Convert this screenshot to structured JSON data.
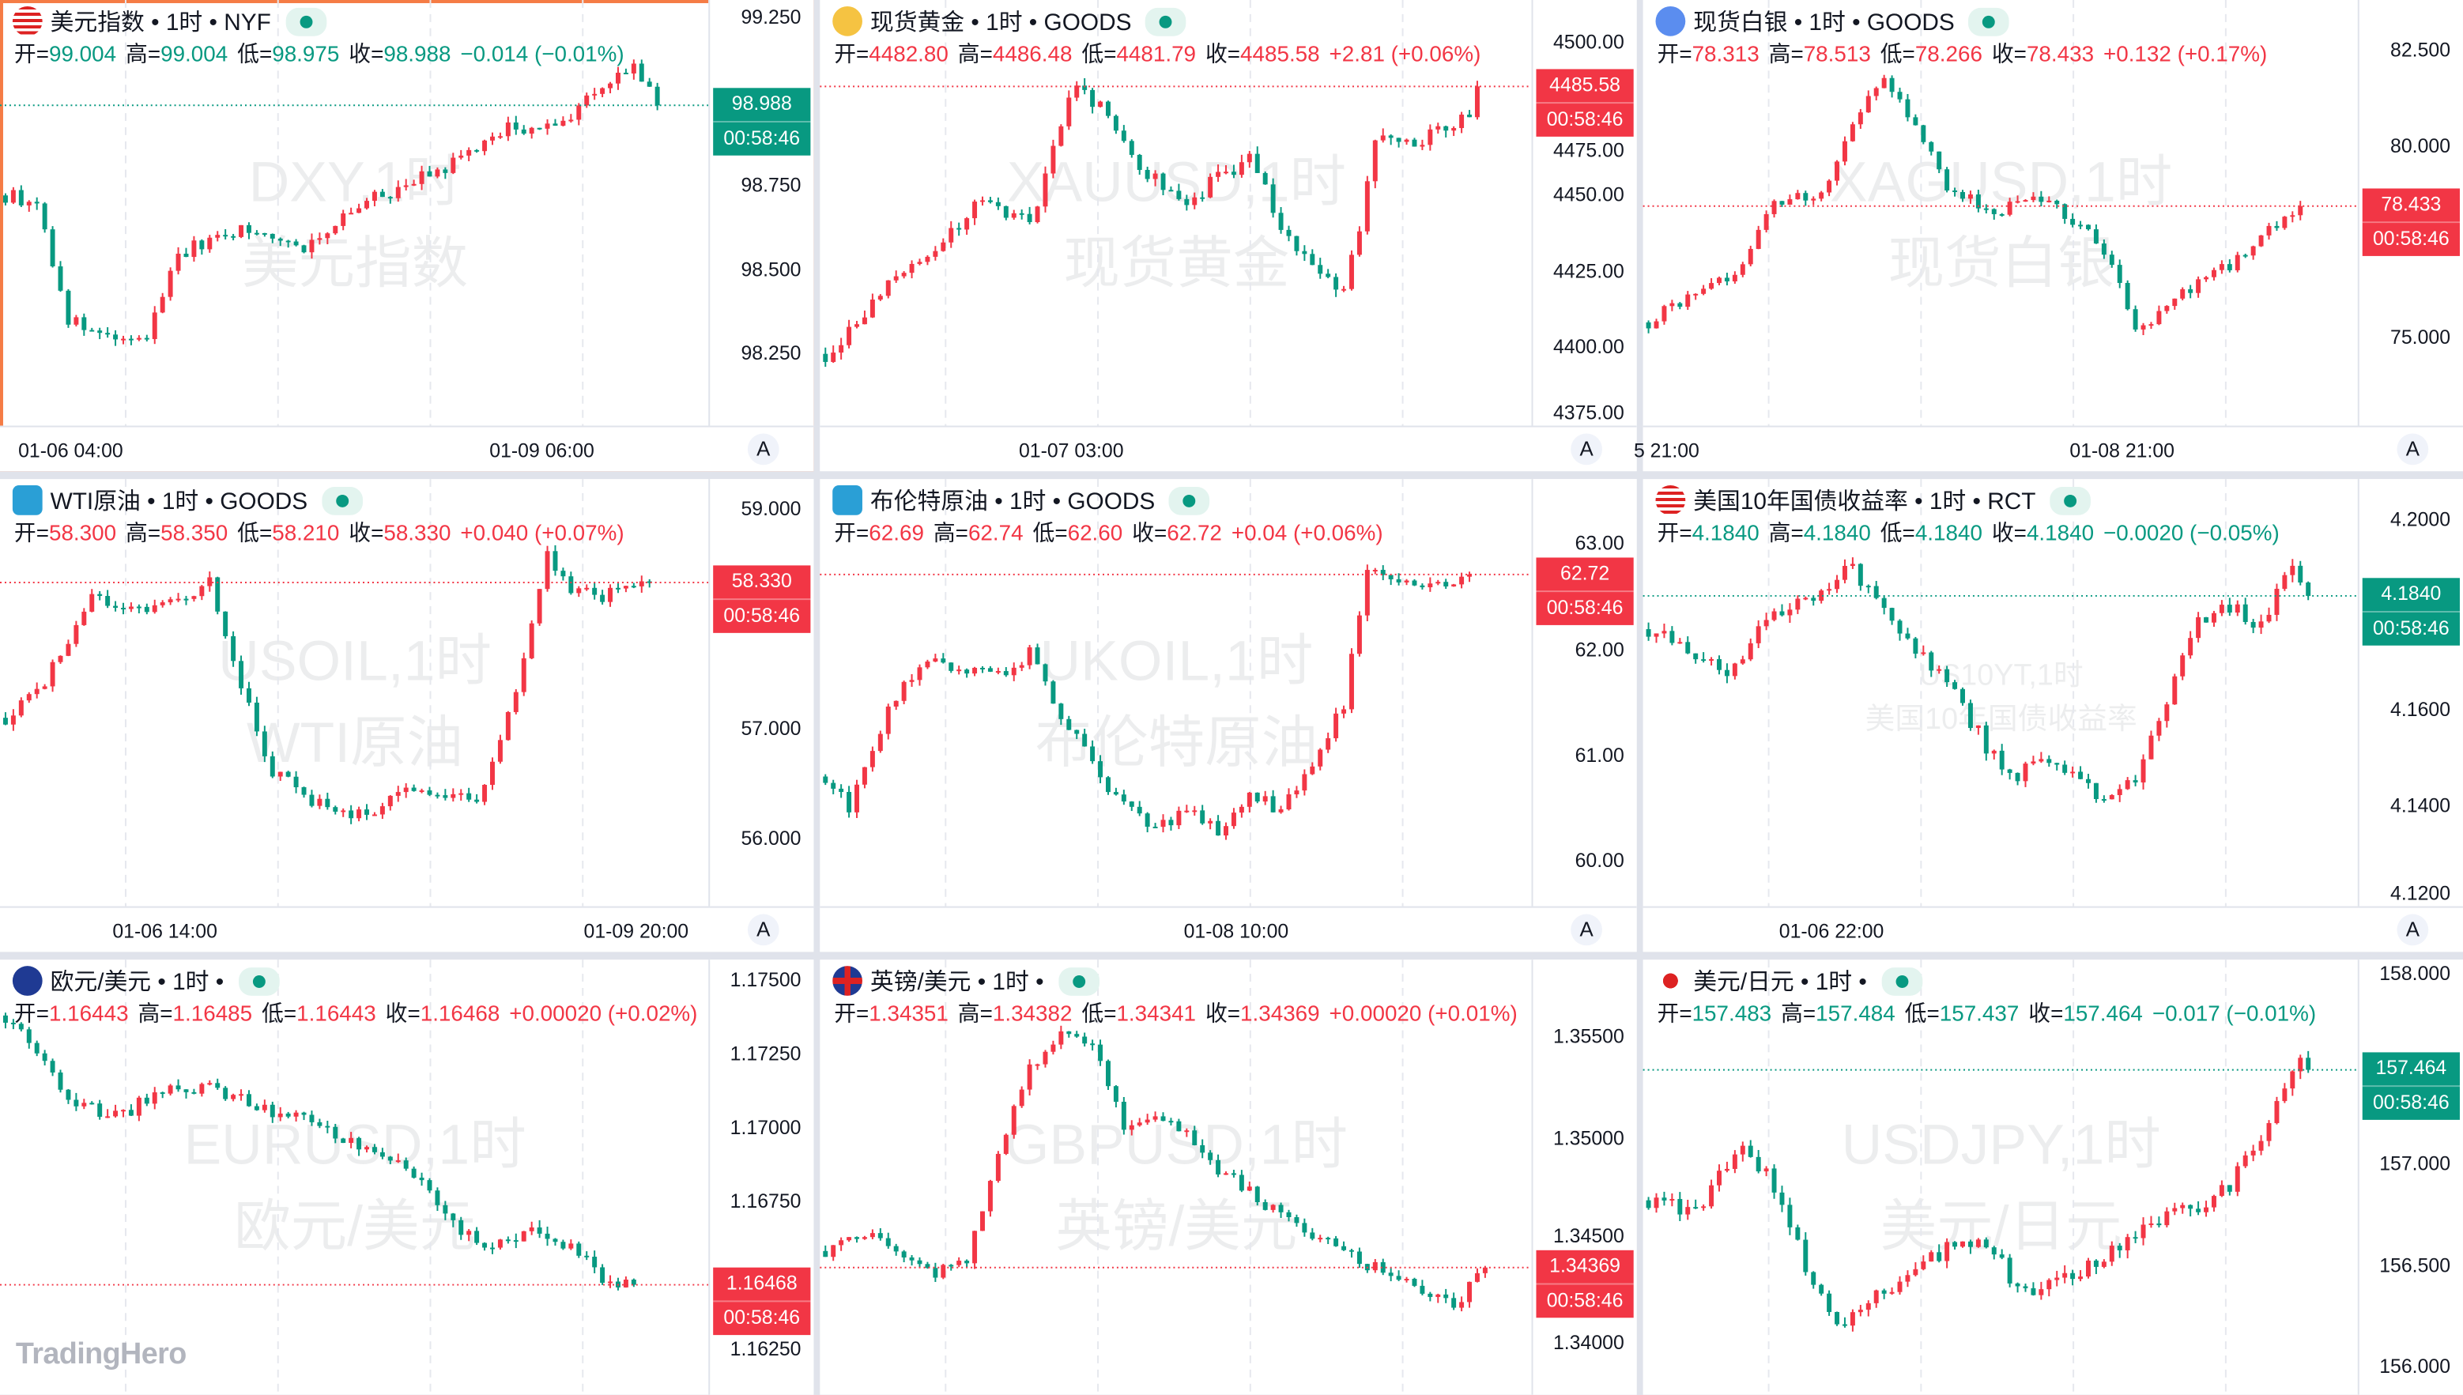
{
  "colors": {
    "up": "#f23645",
    "down": "#089981",
    "selected_border": "#f57c45"
  },
  "ohlc_labels": {
    "open": "开=",
    "high": "高=",
    "low": "低=",
    "close": "收="
  },
  "countdown": "00:58:46",
  "auto_scale_label": "A",
  "logo": "TradingHero",
  "panels": [
    {
      "title": "美元指数 • 1时 • NYF",
      "icon": "us-flag-icon",
      "selected": true,
      "open": "99.004",
      "high": "99.004",
      "low": "98.975",
      "close": "98.988",
      "change": "−0.014 (−0.01%)",
      "direction": "down",
      "price": 98.988,
      "price_label": "98.988",
      "y_ticks": [
        {
          "label": "99.250",
          "value": 99.25
        },
        {
          "label": "98.750",
          "value": 98.75
        },
        {
          "label": "98.500",
          "value": 98.5
        },
        {
          "label": "98.250",
          "value": 98.25
        }
      ],
      "x_labels": [
        {
          "label": "01-06 04:00",
          "bar": 9
        },
        {
          "label": "01-09 06:00",
          "bar": 69
        }
      ],
      "watermark": [
        "DXY,1时",
        "美元指数"
      ],
      "path": [
        [
          0,
          98.72
        ],
        [
          4,
          98.7
        ],
        [
          8,
          98.35
        ],
        [
          14,
          98.28
        ],
        [
          18,
          98.3
        ],
        [
          22,
          98.55
        ],
        [
          30,
          98.62
        ],
        [
          38,
          98.57
        ],
        [
          46,
          98.7
        ],
        [
          56,
          98.8
        ],
        [
          64,
          98.92
        ],
        [
          70,
          98.92
        ],
        [
          76,
          99.05
        ],
        [
          80,
          99.1
        ],
        [
          83,
          98.988
        ]
      ]
    },
    {
      "title": "现货黄金 • 1时 • GOODS",
      "icon": "gold-icon",
      "selected": false,
      "open": "4482.80",
      "high": "4486.48",
      "low": "4481.79",
      "close": "4485.58",
      "change": "+2.81 (+0.06%)",
      "direction": "up",
      "price": 4485.58,
      "price_label": "4485.58",
      "y_ticks": [
        {
          "label": "4500.00",
          "value": 4500
        },
        {
          "label": "4475.00",
          "value": 4475
        },
        {
          "label": "4450.00",
          "value": 4450
        },
        {
          "label": "4425.00",
          "value": 4425
        },
        {
          "label": "4400.00",
          "value": 4400
        },
        {
          "label": "4375.00",
          "value": 4375
        }
      ],
      "x_labels": [
        {
          "label": "01-07 03:00",
          "bar": 32
        }
      ],
      "watermark": [
        "XAUUSD,1时",
        "现货黄金"
      ],
      "path": [
        [
          0,
          4398
        ],
        [
          8,
          4420
        ],
        [
          14,
          4430
        ],
        [
          20,
          4450
        ],
        [
          26,
          4440
        ],
        [
          32,
          4488
        ],
        [
          36,
          4475
        ],
        [
          40,
          4460
        ],
        [
          46,
          4448
        ],
        [
          54,
          4462
        ],
        [
          60,
          4430
        ],
        [
          66,
          4420
        ],
        [
          68,
          4440
        ],
        [
          70,
          4470
        ],
        [
          76,
          4468
        ],
        [
          82,
          4478
        ],
        [
          83,
          4485.58
        ]
      ]
    },
    {
      "title": "现货白银 • 1时 • GOODS",
      "icon": "silver-icon",
      "selected": false,
      "open": "78.313",
      "high": "78.513",
      "low": "78.266",
      "close": "78.433",
      "change": "+0.132 (+0.17%)",
      "direction": "up",
      "price": 78.433,
      "price_label": "78.433",
      "y_ticks": [
        {
          "label": "82.500",
          "value": 82.5
        },
        {
          "label": "80.000",
          "value": 80
        },
        {
          "label": "75.000",
          "value": 75
        }
      ],
      "x_labels": [
        {
          "label": "5 21:00",
          "bar": 3
        },
        {
          "label": "01-08 21:00",
          "bar": 61
        }
      ],
      "watermark": [
        "XAGUSD,1时",
        "现货白银"
      ],
      "path": [
        [
          0,
          75.4
        ],
        [
          6,
          76.2
        ],
        [
          12,
          76.8
        ],
        [
          16,
          78.6
        ],
        [
          22,
          78.8
        ],
        [
          26,
          80.5
        ],
        [
          30,
          81.8
        ],
        [
          34,
          80.5
        ],
        [
          38,
          79.0
        ],
        [
          44,
          78.3
        ],
        [
          50,
          78.6
        ],
        [
          56,
          77.8
        ],
        [
          60,
          76.5
        ],
        [
          62,
          75.2
        ],
        [
          66,
          75.8
        ],
        [
          70,
          76.5
        ],
        [
          74,
          76.9
        ],
        [
          78,
          77.6
        ],
        [
          82,
          78.3
        ],
        [
          83,
          78.433
        ]
      ]
    },
    {
      "title": "WTI原油 • 1时 • GOODS",
      "icon": "oil-icon",
      "selected": false,
      "open": "58.300",
      "high": "58.350",
      "low": "58.210",
      "close": "58.330",
      "change": "+0.040 (+0.07%)",
      "direction": "up",
      "price": 58.33,
      "price_label": "58.330",
      "y_ticks": [
        {
          "label": "59.000",
          "value": 59
        },
        {
          "label": "57.000",
          "value": 57
        },
        {
          "label": "56.000",
          "value": 56
        }
      ],
      "x_labels": [
        {
          "label": "01-06 14:00",
          "bar": 21
        },
        {
          "label": "01-09 20:00",
          "bar": 81
        }
      ],
      "watermark": [
        "USOIL,1时",
        "WTI原油"
      ],
      "path": [
        [
          0,
          57.1
        ],
        [
          4,
          57.3
        ],
        [
          8,
          57.8
        ],
        [
          11,
          58.2
        ],
        [
          14,
          58.05
        ],
        [
          20,
          58.1
        ],
        [
          26,
          58.35
        ],
        [
          30,
          57.4
        ],
        [
          34,
          56.6
        ],
        [
          40,
          56.3
        ],
        [
          46,
          56.2
        ],
        [
          50,
          56.4
        ],
        [
          56,
          56.4
        ],
        [
          60,
          56.3
        ],
        [
          63,
          56.9
        ],
        [
          66,
          57.6
        ],
        [
          69,
          58.6
        ],
        [
          72,
          58.3
        ],
        [
          76,
          58.2
        ],
        [
          80,
          58.3
        ],
        [
          82,
          58.33
        ]
      ]
    },
    {
      "title": "布伦特原油 • 1时 • GOODS",
      "icon": "oil-icon",
      "selected": false,
      "open": "62.69",
      "high": "62.74",
      "low": "62.60",
      "close": "62.72",
      "change": "+0.04 (+0.06%)",
      "direction": "up",
      "price": 62.72,
      "price_label": "62.72",
      "y_ticks": [
        {
          "label": "63.00",
          "value": 63
        },
        {
          "label": "62.00",
          "value": 62
        },
        {
          "label": "61.00",
          "value": 61
        },
        {
          "label": "60.00",
          "value": 60
        }
      ],
      "x_labels": [
        {
          "label": "01-08 10:00",
          "bar": 53
        }
      ],
      "watermark": [
        "UKOIL,1时",
        "布伦特原油"
      ],
      "path": [
        [
          0,
          60.8
        ],
        [
          3,
          60.5
        ],
        [
          8,
          61.4
        ],
        [
          12,
          61.9
        ],
        [
          18,
          61.8
        ],
        [
          24,
          61.8
        ],
        [
          26,
          62.0
        ],
        [
          30,
          61.4
        ],
        [
          34,
          60.9
        ],
        [
          38,
          60.5
        ],
        [
          42,
          60.3
        ],
        [
          46,
          60.5
        ],
        [
          50,
          60.3
        ],
        [
          54,
          60.6
        ],
        [
          58,
          60.5
        ],
        [
          62,
          60.9
        ],
        [
          66,
          61.5
        ],
        [
          69,
          62.8
        ],
        [
          72,
          62.7
        ],
        [
          76,
          62.65
        ],
        [
          80,
          62.6
        ],
        [
          82,
          62.72
        ]
      ]
    },
    {
      "title": "美国10年国债收益率 • 1时 • RCT",
      "icon": "us-flag-icon",
      "selected": false,
      "open": "4.1840",
      "high": "4.1840",
      "low": "4.1840",
      "close": "4.1840",
      "change": "−0.0020 (−0.05%)",
      "direction": "down",
      "price": 4.184,
      "price_label": "4.1840",
      "y_ticks": [
        {
          "label": "4.2000",
          "value": 4.2
        },
        {
          "label": "4.1600",
          "value": 4.16
        },
        {
          "label": "4.1400",
          "value": 4.14
        },
        {
          "label": "4.1200",
          "value": 4.12
        }
      ],
      "x_labels": [
        {
          "label": "01-06 22:00",
          "bar": 24
        }
      ],
      "watermark": [
        "US10YT,1时",
        "美国10年国债收益率"
      ],
      "path": [
        [
          0,
          4.177
        ],
        [
          6,
          4.172
        ],
        [
          10,
          4.168
        ],
        [
          16,
          4.18
        ],
        [
          22,
          4.185
        ],
        [
          26,
          4.19
        ],
        [
          30,
          4.18
        ],
        [
          34,
          4.172
        ],
        [
          38,
          4.166
        ],
        [
          42,
          4.155
        ],
        [
          46,
          4.145
        ],
        [
          50,
          4.15
        ],
        [
          54,
          4.148
        ],
        [
          58,
          4.14
        ],
        [
          62,
          4.145
        ],
        [
          66,
          4.162
        ],
        [
          70,
          4.178
        ],
        [
          74,
          4.182
        ],
        [
          78,
          4.178
        ],
        [
          82,
          4.19
        ],
        [
          84,
          4.184
        ]
      ]
    },
    {
      "title": "欧元/美元 • 1时 •",
      "icon": "eu-flag-icon",
      "selected": false,
      "open": "1.16443",
      "high": "1.16485",
      "low": "1.16443",
      "close": "1.16468",
      "change": "+0.00020 (+0.02%)",
      "direction": "up",
      "price": 1.16468,
      "price_label": "1.16468",
      "y_ticks": [
        {
          "label": "1.17500",
          "value": 1.175
        },
        {
          "label": "1.17250",
          "value": 1.1725
        },
        {
          "label": "1.17000",
          "value": 1.17
        },
        {
          "label": "1.16750",
          "value": 1.1675
        },
        {
          "label": "1.16250",
          "value": 1.1625
        }
      ],
      "watermark": [
        "EURUSD,1时",
        "欧元/美元"
      ],
      "path": [
        [
          0,
          1.1738
        ],
        [
          4,
          1.1725
        ],
        [
          8,
          1.171
        ],
        [
          14,
          1.1703
        ],
        [
          20,
          1.1712
        ],
        [
          26,
          1.1714
        ],
        [
          32,
          1.1708
        ],
        [
          38,
          1.1702
        ],
        [
          44,
          1.1695
        ],
        [
          52,
          1.1685
        ],
        [
          58,
          1.1665
        ],
        [
          62,
          1.166
        ],
        [
          66,
          1.1665
        ],
        [
          70,
          1.1662
        ],
        [
          74,
          1.1655
        ],
        [
          78,
          1.1645
        ],
        [
          80,
          1.16468
        ]
      ]
    },
    {
      "title": "英镑/美元 • 1时 •",
      "icon": "uk-flag-icon",
      "selected": false,
      "open": "1.34351",
      "high": "1.34382",
      "low": "1.34341",
      "close": "1.34369",
      "change": "+0.00020 (+0.01%)",
      "direction": "up",
      "price": 1.34369,
      "price_label": "1.34369",
      "y_ticks": [
        {
          "label": "1.35500",
          "value": 1.355
        },
        {
          "label": "1.35000",
          "value": 1.35
        },
        {
          "label": "1.34500",
          "value": 1.345
        },
        {
          "label": "1.34000",
          "value": 1.34
        }
      ],
      "watermark": [
        "GBPUSD,1时",
        "英镑/美元"
      ],
      "path": [
        [
          0,
          1.3445
        ],
        [
          6,
          1.3455
        ],
        [
          10,
          1.3445
        ],
        [
          14,
          1.3435
        ],
        [
          18,
          1.344
        ],
        [
          22,
          1.3492
        ],
        [
          26,
          1.3535
        ],
        [
          30,
          1.3552
        ],
        [
          34,
          1.3545
        ],
        [
          38,
          1.3505
        ],
        [
          42,
          1.351
        ],
        [
          46,
          1.3505
        ],
        [
          50,
          1.3485
        ],
        [
          56,
          1.3468
        ],
        [
          62,
          1.3452
        ],
        [
          68,
          1.344
        ],
        [
          74,
          1.3432
        ],
        [
          80,
          1.3418
        ],
        [
          84,
          1.34369
        ]
      ]
    },
    {
      "title": "美元/日元 • 1时 •",
      "icon": "jp-flag-icon",
      "selected": false,
      "open": "157.483",
      "high": "157.484",
      "low": "157.437",
      "close": "157.464",
      "change": "−0.017 (−0.01%)",
      "direction": "down",
      "price": 157.464,
      "price_label": "157.464",
      "y_ticks": [
        {
          "label": "158.000",
          "value": 158
        },
        {
          "label": "157.000",
          "value": 157
        },
        {
          "label": "156.500",
          "value": 156.5
        },
        {
          "label": "156.000",
          "value": 156
        }
      ],
      "watermark": [
        "USDJPY,1时",
        "美元/日元"
      ],
      "path": [
        [
          0,
          156.82
        ],
        [
          6,
          156.75
        ],
        [
          12,
          157.1
        ],
        [
          16,
          156.9
        ],
        [
          20,
          156.5
        ],
        [
          24,
          156.2
        ],
        [
          28,
          156.3
        ],
        [
          34,
          156.5
        ],
        [
          40,
          156.62
        ],
        [
          44,
          156.55
        ],
        [
          48,
          156.35
        ],
        [
          54,
          156.45
        ],
        [
          60,
          156.6
        ],
        [
          64,
          156.7
        ],
        [
          70,
          156.78
        ],
        [
          74,
          156.9
        ],
        [
          78,
          157.1
        ],
        [
          82,
          157.5
        ],
        [
          84,
          157.464
        ]
      ]
    }
  ]
}
